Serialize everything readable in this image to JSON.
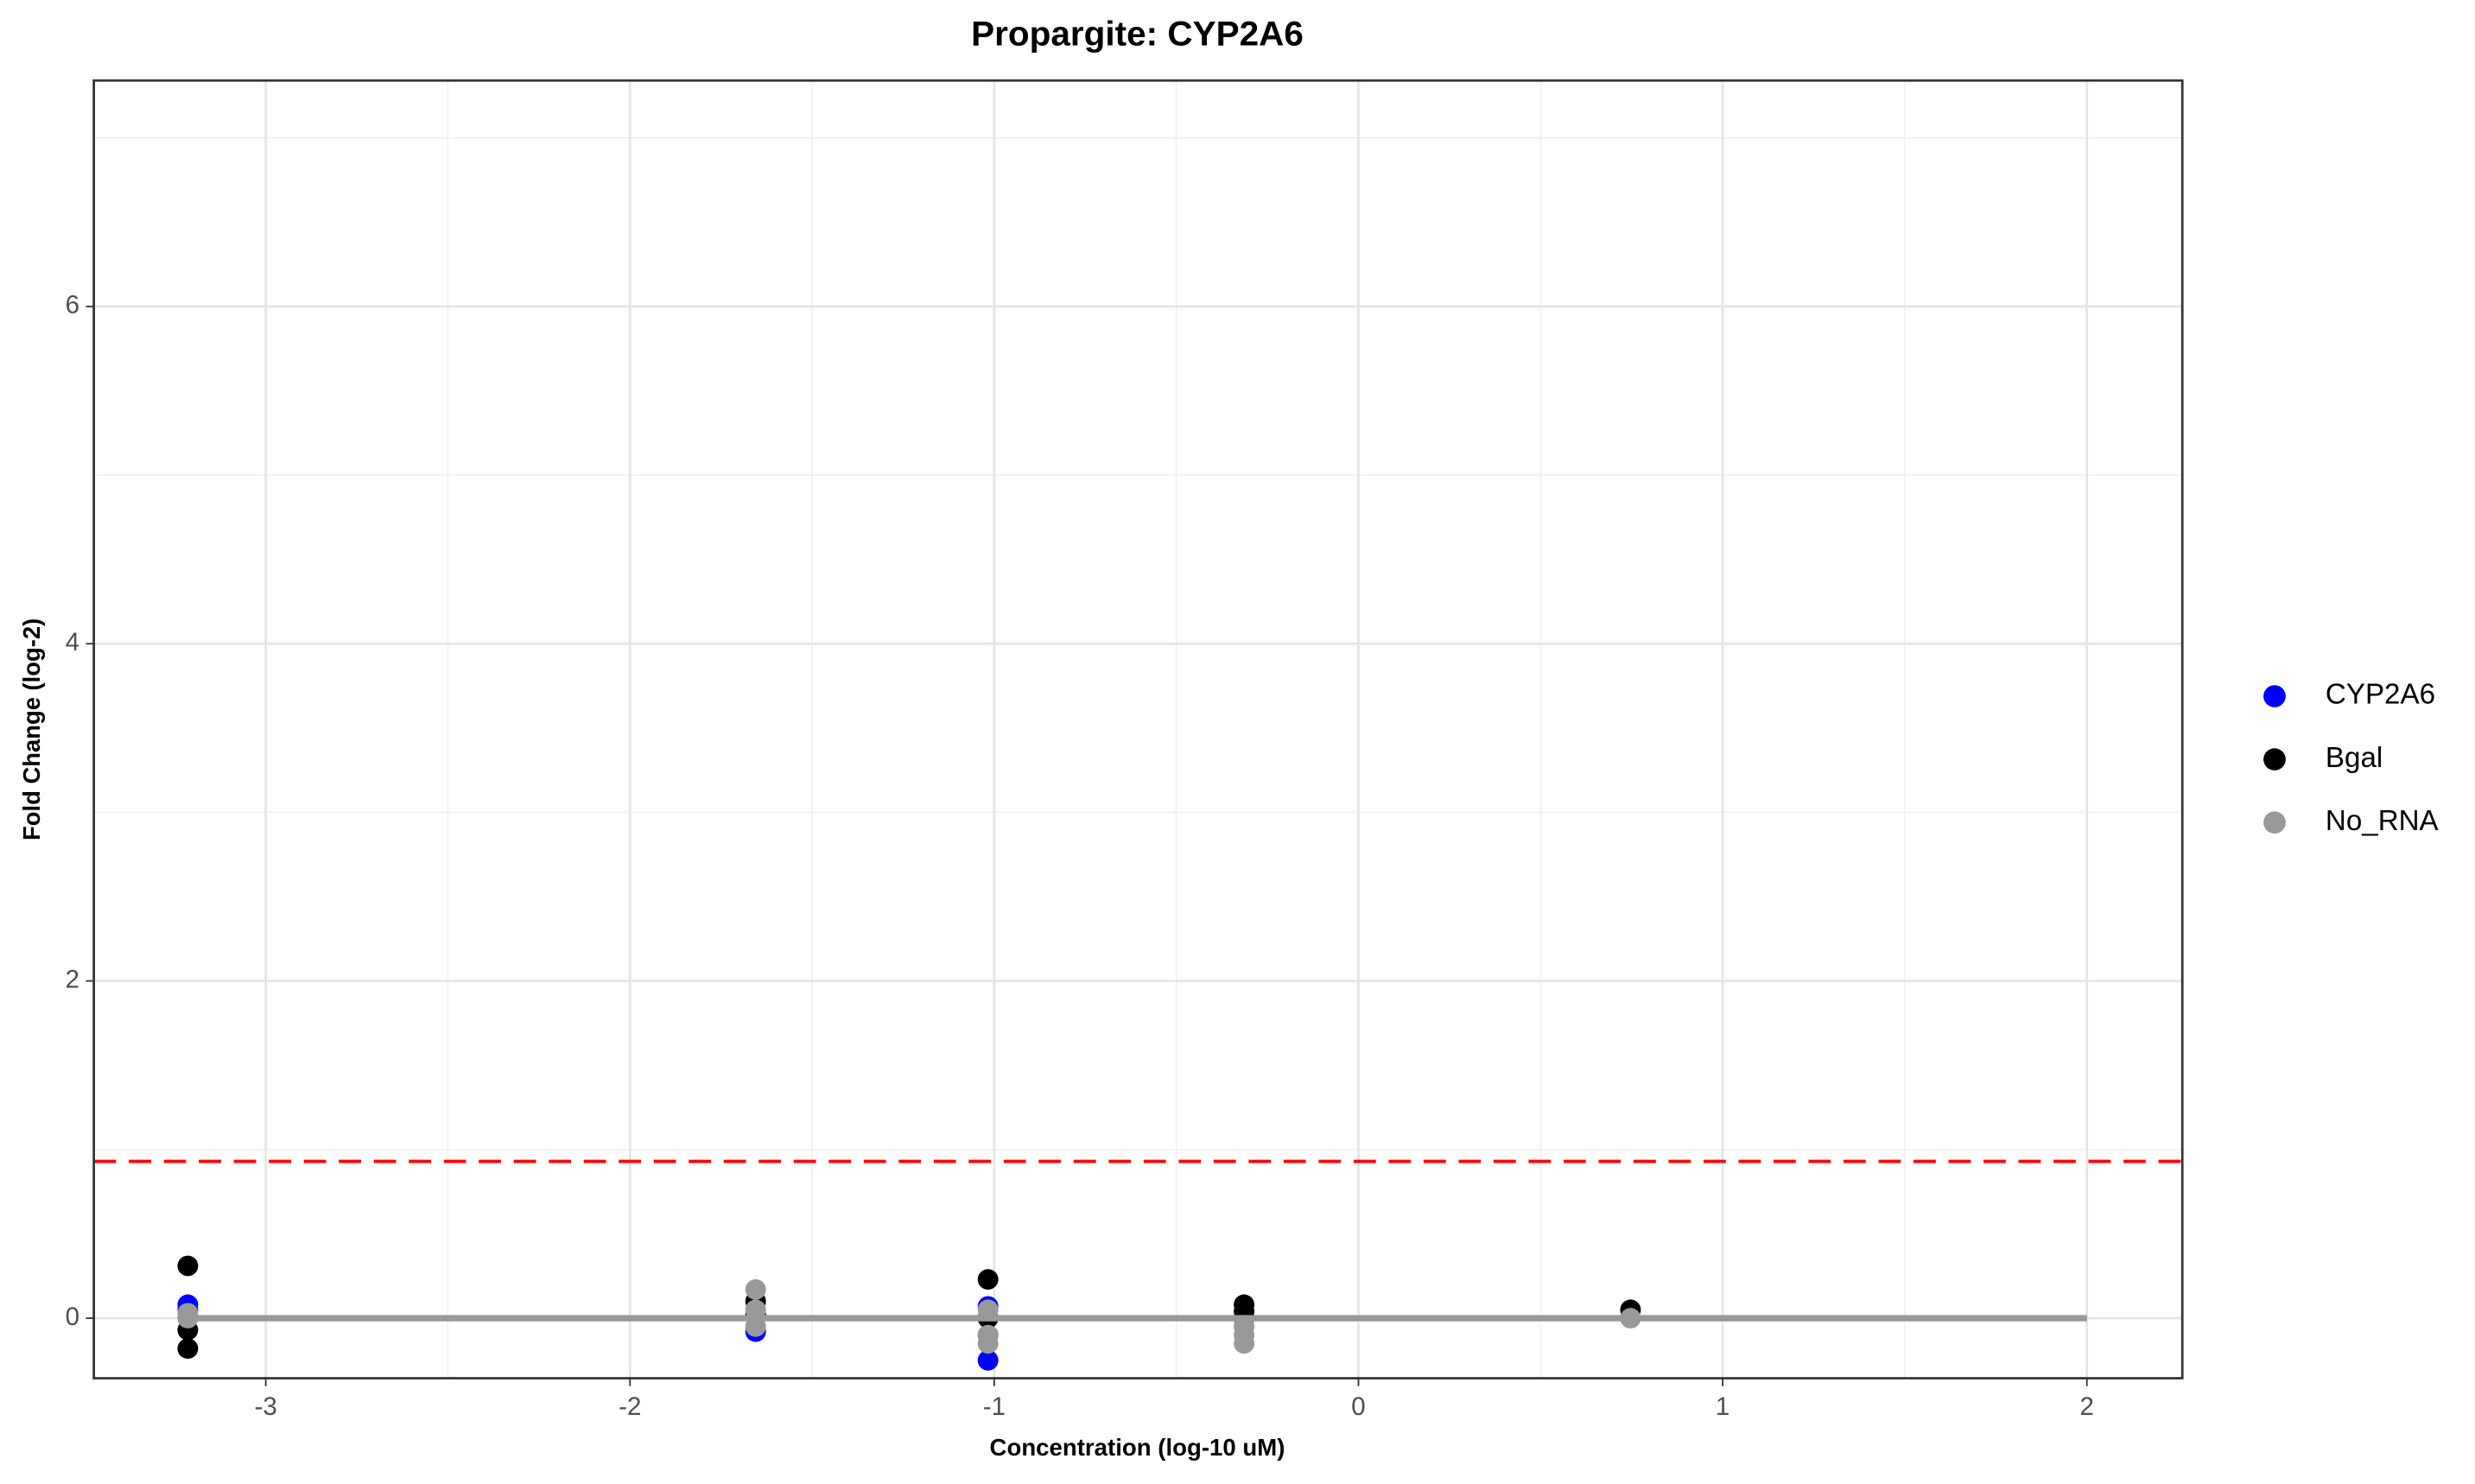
{
  "chart_data": {
    "type": "scatter",
    "title": "Propargite: CYP2A6",
    "x_label": "Concentration (log-10 uM)",
    "y_label": "Fold Change (log-2)",
    "xlim": [
      -3.472,
      2.262
    ],
    "ylim": [
      -0.356,
      7.34
    ],
    "xticks": [
      -3,
      -2,
      -1,
      0,
      1,
      2
    ],
    "yticks": [
      0,
      2,
      4,
      6
    ],
    "x_minor_ticks": [
      -2.5,
      -1.5,
      -0.5,
      0.5,
      1.5
    ],
    "y_minor_ticks": [
      1,
      3,
      5,
      7
    ],
    "grid": true,
    "legend": "right",
    "series": [
      {
        "name": "CYP2A6",
        "color": "#0000ff",
        "x": [
          -3.214,
          -3.214,
          -1.655,
          -1.017,
          -1.017,
          -0.314
        ],
        "values": [
          0.08,
          0.05,
          -0.08,
          0.07,
          -0.25,
          0.0
        ]
      },
      {
        "name": "Bgal",
        "color": "#000000",
        "x": [
          -3.214,
          -3.214,
          -3.214,
          -1.655,
          -1.655,
          -1.017,
          -1.017,
          -1.017,
          -0.314,
          -0.314,
          0.747
        ],
        "values": [
          0.31,
          -0.07,
          -0.18,
          0.1,
          0.02,
          0.23,
          0.0,
          -0.1,
          0.08,
          0.04,
          0.05
        ]
      },
      {
        "name": "No_RNA",
        "color": "#999999",
        "x": [
          -3.214,
          -3.214,
          -1.655,
          -1.655,
          -1.655,
          -1.017,
          -1.017,
          -1.017,
          -0.314,
          -0.314,
          -0.314,
          0.747
        ],
        "values": [
          0.03,
          0.0,
          0.17,
          0.05,
          -0.05,
          0.05,
          -0.1,
          -0.15,
          -0.05,
          -0.1,
          -0.15,
          0.0
        ]
      }
    ],
    "fit_line": {
      "x": [
        -3.214,
        2
      ],
      "values": [
        0,
        0
      ],
      "color": "#999999"
    },
    "hline": {
      "value": 0.93,
      "color": "#ff0000"
    }
  }
}
